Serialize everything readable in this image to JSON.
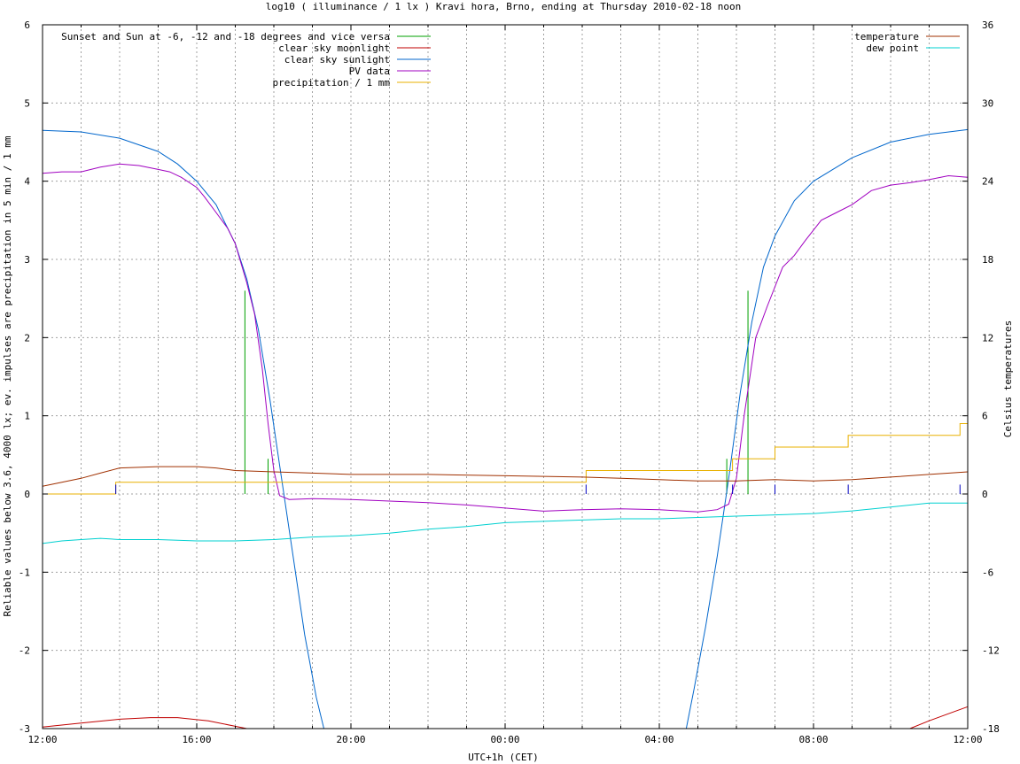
{
  "chart_data": {
    "type": "line",
    "title": "log10 ( illuminance / 1 lx ) Kravi hora, Brno, ending at Thursday 2010-02-18 noon",
    "xlabel": "UTC+1h (CET)",
    "ylabel": "Reliable values below 3.6, 4000 lx; ev. impulses are precipitation in 5 min / 1 mm",
    "y2label": "Celsius temperatures",
    "xlim": [
      0,
      24
    ],
    "ylim": [
      -3,
      6
    ],
    "y2lim": [
      -18,
      36
    ],
    "grid": true,
    "x_ticks": [
      {
        "x": 0,
        "label": "12:00"
      },
      {
        "x": 4,
        "label": "16:00"
      },
      {
        "x": 8,
        "label": "20:00"
      },
      {
        "x": 12,
        "label": "00:00"
      },
      {
        "x": 16,
        "label": "04:00"
      },
      {
        "x": 20,
        "label": "08:00"
      },
      {
        "x": 24,
        "label": "12:00"
      }
    ],
    "y_ticks": [
      {
        "y": -3,
        "label": "-3"
      },
      {
        "y": -2,
        "label": "-2"
      },
      {
        "y": -1,
        "label": "-1"
      },
      {
        "y": 0,
        "label": "0"
      },
      {
        "y": 1,
        "label": "1"
      },
      {
        "y": 2,
        "label": "2"
      },
      {
        "y": 3,
        "label": "3"
      },
      {
        "y": 4,
        "label": "4"
      },
      {
        "y": 5,
        "label": "5"
      },
      {
        "y": 6,
        "label": "6"
      }
    ],
    "y2_ticks": [
      {
        "y": -18,
        "label": "-18"
      },
      {
        "y": -12,
        "label": "-12"
      },
      {
        "y": -6,
        "label": "-6"
      },
      {
        "y": 0,
        "label": "0"
      },
      {
        "y": 6,
        "label": "6"
      },
      {
        "y": 12,
        "label": "12"
      },
      {
        "y": 18,
        "label": "18"
      },
      {
        "y": 24,
        "label": "24"
      },
      {
        "y": 30,
        "label": "30"
      },
      {
        "y": 36,
        "label": "36"
      }
    ],
    "legend_left": [
      {
        "label": "Sunset and Sun at -6, -12 and -18 degrees and vice versa",
        "color": "#00a000"
      },
      {
        "label": "clear sky moonlight",
        "color": "#c00000"
      },
      {
        "label": "clear sky sunlight",
        "color": "#0066cc"
      },
      {
        "label": "PV data",
        "color": "#a000c0"
      },
      {
        "label": "precipitation / 1 mm",
        "color": "#e8b000"
      }
    ],
    "legend_right": [
      {
        "label": "temperature",
        "color": "#a03000"
      },
      {
        "label": "dew point",
        "color": "#00d0d0"
      }
    ],
    "series": [
      {
        "name": "Sunset and Sun at -6, -12 and -18 degrees and vice versa",
        "color": "#00a000",
        "type": "impulses",
        "points": [
          [
            5.25,
            2.6
          ],
          [
            5.85,
            0.45
          ],
          [
            6.45,
            0.0
          ],
          [
            7.05,
            0.0
          ],
          [
            16.55,
            0.0
          ],
          [
            17.15,
            0.0
          ],
          [
            17.75,
            0.45
          ],
          [
            18.3,
            2.6
          ]
        ]
      },
      {
        "name": "clear sky moonlight",
        "color": "#c00000",
        "axis": "y",
        "points": [
          [
            0,
            -2.98
          ],
          [
            1,
            -2.93
          ],
          [
            2,
            -2.88
          ],
          [
            2.8,
            -2.86
          ],
          [
            3.5,
            -2.86
          ],
          [
            4.3,
            -2.9
          ],
          [
            5.0,
            -2.97
          ],
          [
            5.3,
            -3.0
          ],
          [
            22.5,
            -3.0
          ],
          [
            23.0,
            -2.9
          ],
          [
            23.5,
            -2.81
          ],
          [
            24,
            -2.72
          ]
        ]
      },
      {
        "name": "clear sky sunlight",
        "color": "#0066cc",
        "axis": "y",
        "points": [
          [
            0,
            4.65
          ],
          [
            1,
            4.63
          ],
          [
            2,
            4.55
          ],
          [
            3,
            4.38
          ],
          [
            3.5,
            4.22
          ],
          [
            4,
            4.0
          ],
          [
            4.5,
            3.7
          ],
          [
            5,
            3.2
          ],
          [
            5.3,
            2.75
          ],
          [
            5.6,
            2.1
          ],
          [
            5.9,
            1.2
          ],
          [
            6.2,
            0.2
          ],
          [
            6.5,
            -0.8
          ],
          [
            6.8,
            -1.8
          ],
          [
            7.1,
            -2.6
          ],
          [
            7.3,
            -3.0
          ],
          [
            16.7,
            -3.0
          ],
          [
            16.9,
            -2.5
          ],
          [
            17.2,
            -1.7
          ],
          [
            17.5,
            -0.8
          ],
          [
            17.8,
            0.2
          ],
          [
            18.1,
            1.3
          ],
          [
            18.4,
            2.2
          ],
          [
            18.7,
            2.9
          ],
          [
            19.0,
            3.3
          ],
          [
            19.5,
            3.75
          ],
          [
            20,
            4.0
          ],
          [
            21,
            4.3
          ],
          [
            22,
            4.5
          ],
          [
            23,
            4.6
          ],
          [
            24,
            4.66
          ]
        ]
      },
      {
        "name": "PV data",
        "color": "#a000c0",
        "axis": "y",
        "points": [
          [
            0,
            4.1
          ],
          [
            0.5,
            4.12
          ],
          [
            1,
            4.12
          ],
          [
            1.5,
            4.18
          ],
          [
            2,
            4.22
          ],
          [
            2.5,
            4.2
          ],
          [
            3,
            4.15
          ],
          [
            3.3,
            4.12
          ],
          [
            3.6,
            4.05
          ],
          [
            4,
            3.92
          ],
          [
            4.2,
            3.8
          ],
          [
            4.5,
            3.6
          ],
          [
            4.8,
            3.4
          ],
          [
            5.0,
            3.2
          ],
          [
            5.3,
            2.7
          ],
          [
            5.5,
            2.3
          ],
          [
            5.7,
            1.6
          ],
          [
            5.85,
            0.9
          ],
          [
            6.0,
            0.3
          ],
          [
            6.15,
            -0.02
          ],
          [
            6.4,
            -0.07
          ],
          [
            7,
            -0.06
          ],
          [
            8,
            -0.07
          ],
          [
            9,
            -0.09
          ],
          [
            10,
            -0.11
          ],
          [
            11,
            -0.14
          ],
          [
            12,
            -0.18
          ],
          [
            13,
            -0.22
          ],
          [
            14,
            -0.2
          ],
          [
            15,
            -0.19
          ],
          [
            16,
            -0.2
          ],
          [
            17,
            -0.23
          ],
          [
            17.5,
            -0.2
          ],
          [
            17.8,
            -0.13
          ],
          [
            18.0,
            0.2
          ],
          [
            18.2,
            1.0
          ],
          [
            18.5,
            2.0
          ],
          [
            18.8,
            2.4
          ],
          [
            19.2,
            2.9
          ],
          [
            19.5,
            3.05
          ],
          [
            19.8,
            3.25
          ],
          [
            20.2,
            3.5
          ],
          [
            20.6,
            3.6
          ],
          [
            21.0,
            3.7
          ],
          [
            21.5,
            3.88
          ],
          [
            22,
            3.95
          ],
          [
            22.5,
            3.98
          ],
          [
            23,
            4.02
          ],
          [
            23.5,
            4.07
          ],
          [
            24,
            4.05
          ]
        ]
      },
      {
        "name": "precipitation / 1 mm",
        "color": "#e8b000",
        "type": "steps",
        "axis": "y",
        "points": [
          [
            0,
            0
          ],
          [
            1.9,
            0
          ],
          [
            1.9,
            0.15
          ],
          [
            14.1,
            0.15
          ],
          [
            14.1,
            0.3
          ],
          [
            17.9,
            0.3
          ],
          [
            17.9,
            0.45
          ],
          [
            19.0,
            0.45
          ],
          [
            19.0,
            0.6
          ],
          [
            20.9,
            0.6
          ],
          [
            20.9,
            0.75
          ],
          [
            23.8,
            0.75
          ],
          [
            23.8,
            0.9
          ],
          [
            24,
            0.9
          ]
        ]
      },
      {
        "name": "precipitation impulses",
        "color": "#0000c0",
        "type": "impulses",
        "axis": "y",
        "points": [
          [
            1.9,
            0.12
          ],
          [
            14.1,
            0.12
          ],
          [
            17.9,
            0.12
          ],
          [
            19.0,
            0.12
          ],
          [
            20.9,
            0.12
          ],
          [
            23.8,
            0.12
          ]
        ]
      },
      {
        "name": "temperature",
        "color": "#a03000",
        "axis": "y2",
        "points": [
          [
            0,
            0.6
          ],
          [
            0.5,
            0.9
          ],
          [
            1,
            1.2
          ],
          [
            1.5,
            1.6
          ],
          [
            2,
            2.0
          ],
          [
            3,
            2.1
          ],
          [
            4,
            2.1
          ],
          [
            4.5,
            2.0
          ],
          [
            5,
            1.8
          ],
          [
            6,
            1.7
          ],
          [
            7,
            1.6
          ],
          [
            8,
            1.5
          ],
          [
            10,
            1.5
          ],
          [
            12,
            1.4
          ],
          [
            14,
            1.3
          ],
          [
            15,
            1.2
          ],
          [
            16,
            1.1
          ],
          [
            17,
            1.0
          ],
          [
            18,
            1.0
          ],
          [
            19,
            1.1
          ],
          [
            20,
            1.0
          ],
          [
            21,
            1.1
          ],
          [
            22,
            1.3
          ],
          [
            23,
            1.5
          ],
          [
            24,
            1.7
          ]
        ]
      },
      {
        "name": "dew point",
        "color": "#00d0d0",
        "axis": "y2",
        "points": [
          [
            0,
            -3.8
          ],
          [
            0.5,
            -3.6
          ],
          [
            1,
            -3.5
          ],
          [
            1.5,
            -3.4
          ],
          [
            2,
            -3.5
          ],
          [
            3,
            -3.5
          ],
          [
            4,
            -3.6
          ],
          [
            5,
            -3.6
          ],
          [
            6,
            -3.5
          ],
          [
            7,
            -3.3
          ],
          [
            8,
            -3.2
          ],
          [
            9,
            -3.0
          ],
          [
            10,
            -2.7
          ],
          [
            11,
            -2.5
          ],
          [
            12,
            -2.2
          ],
          [
            13,
            -2.1
          ],
          [
            14,
            -2.0
          ],
          [
            15,
            -1.9
          ],
          [
            16,
            -1.9
          ],
          [
            17,
            -1.8
          ],
          [
            18,
            -1.7
          ],
          [
            19,
            -1.6
          ],
          [
            20,
            -1.5
          ],
          [
            21,
            -1.3
          ],
          [
            22,
            -1.0
          ],
          [
            23,
            -0.7
          ],
          [
            24,
            -0.7
          ]
        ]
      }
    ]
  }
}
